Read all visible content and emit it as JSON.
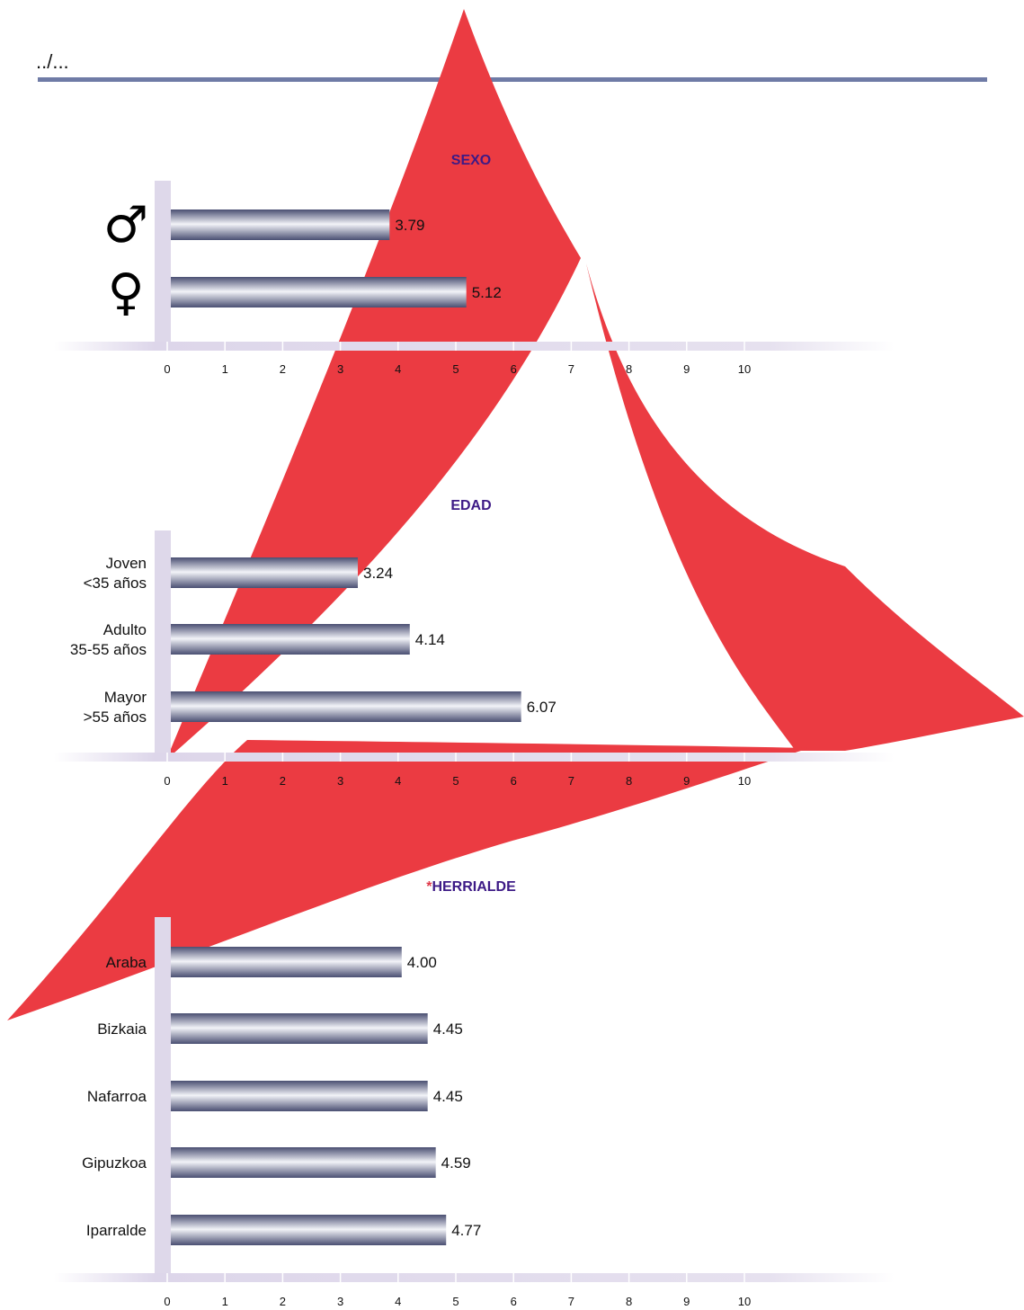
{
  "page_marker": "../...",
  "colors": {
    "rule": "#6f7ba6",
    "background_shape": "#eb3b42",
    "axis_band": "#ded8ea",
    "bar_dark": "#4a4f72",
    "bar_light": "#f2f3f8",
    "title": "#3d1a86",
    "title_star": "#e03a4a"
  },
  "chart_data": [
    {
      "type": "bar",
      "orientation": "horizontal",
      "title": "SEXO",
      "categories": [
        "♂",
        "♀"
      ],
      "category_icons": [
        "male-symbol-icon",
        "female-symbol-icon"
      ],
      "values": [
        3.79,
        5.12
      ],
      "value_labels": [
        "3.79",
        "5.12"
      ],
      "xlim": [
        0,
        10
      ],
      "ticks": [
        "0",
        "1",
        "2",
        "3",
        "4",
        "5",
        "6",
        "7",
        "8",
        "9",
        "10"
      ],
      "grid": false
    },
    {
      "type": "bar",
      "orientation": "horizontal",
      "title": "EDAD",
      "categories": [
        [
          "Joven",
          "<35 años"
        ],
        [
          "Adulto",
          "35-55 años"
        ],
        [
          "Mayor",
          ">55 años"
        ]
      ],
      "values": [
        3.24,
        4.14,
        6.07
      ],
      "value_labels": [
        "3.24",
        "4.14",
        "6.07"
      ],
      "xlim": [
        0,
        10
      ],
      "ticks": [
        "0",
        "1",
        "2",
        "3",
        "4",
        "5",
        "6",
        "7",
        "8",
        "9",
        "10"
      ],
      "grid": false
    },
    {
      "type": "bar",
      "orientation": "horizontal",
      "title_prefix": "*",
      "title": "HERRIALDE",
      "categories": [
        "Araba",
        "Bizkaia",
        "Nafarroa",
        "Gipuzkoa",
        "Iparralde"
      ],
      "values": [
        4.0,
        4.45,
        4.45,
        4.59,
        4.77
      ],
      "value_labels": [
        "4.00",
        "4.45",
        "4.45",
        "4.59",
        "4.77"
      ],
      "xlim": [
        0,
        10
      ],
      "ticks": [
        "0",
        "1",
        "2",
        "3",
        "4",
        "5",
        "6",
        "7",
        "8",
        "9",
        "10"
      ],
      "grid": false
    }
  ]
}
